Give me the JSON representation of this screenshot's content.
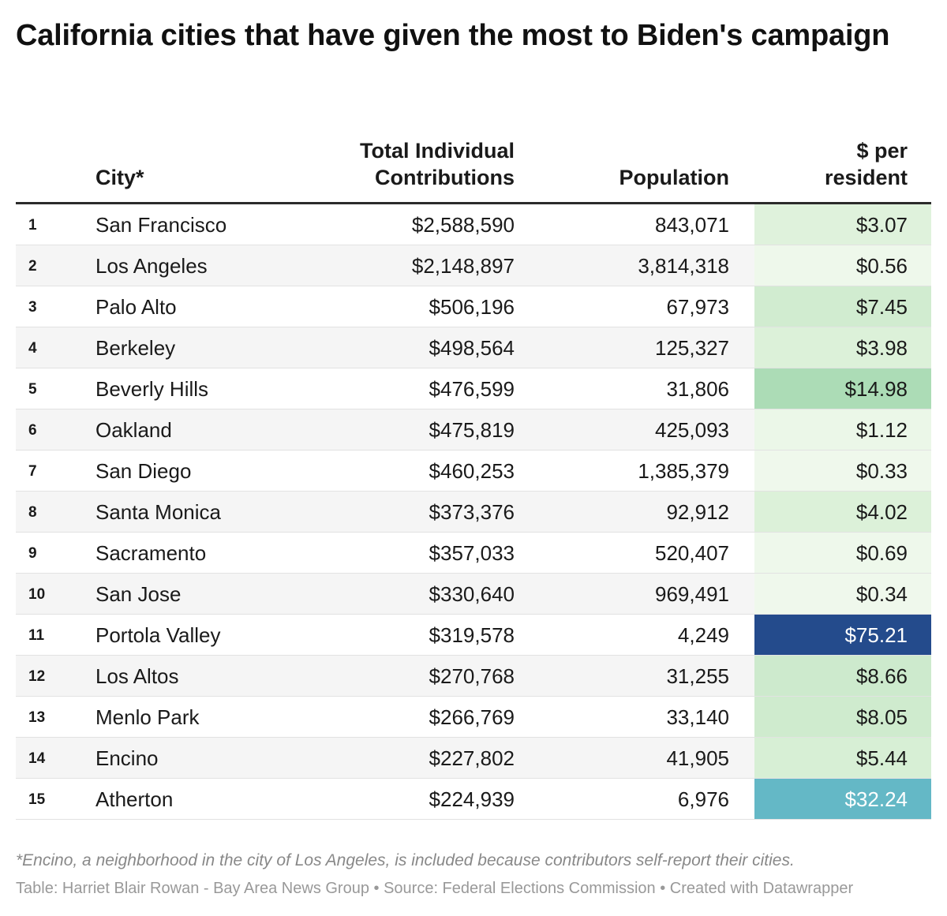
{
  "title": "California cities that have given the most to Biden's campaign",
  "chart_data": {
    "type": "table",
    "title": "California cities that have given the most to Biden's campaign",
    "columns": [
      "",
      "City*",
      "Total Individual Contributions",
      "Population",
      "$ per resident"
    ],
    "rows": [
      {
        "rank": "1",
        "city": "San Francisco",
        "total": "$2,588,590",
        "population": "843,071",
        "per_resident": "$3.07",
        "per_value": 3.07,
        "color": "#dff2dc",
        "text_color": "#1a1a1a"
      },
      {
        "rank": "2",
        "city": "Los Angeles",
        "total": "$2,148,897",
        "population": "3,814,318",
        "per_resident": "$0.56",
        "per_value": 0.56,
        "color": "#eef8eb",
        "text_color": "#1a1a1a"
      },
      {
        "rank": "3",
        "city": "Palo Alto",
        "total": "$506,196",
        "population": "67,973",
        "per_resident": "$7.45",
        "per_value": 7.45,
        "color": "#d1ecd0",
        "text_color": "#1a1a1a"
      },
      {
        "rank": "4",
        "city": "Berkeley",
        "total": "$498,564",
        "population": "125,327",
        "per_resident": "$3.98",
        "per_value": 3.98,
        "color": "#dcf1d9",
        "text_color": "#1a1a1a"
      },
      {
        "rank": "5",
        "city": "Beverly Hills",
        "total": "$476,599",
        "population": "31,806",
        "per_resident": "$14.98",
        "per_value": 14.98,
        "color": "#acdcb6",
        "text_color": "#1a1a1a"
      },
      {
        "rank": "6",
        "city": "Oakland",
        "total": "$475,819",
        "population": "425,093",
        "per_resident": "$1.12",
        "per_value": 1.12,
        "color": "#ebf7e8",
        "text_color": "#1a1a1a"
      },
      {
        "rank": "7",
        "city": "San Diego",
        "total": "$460,253",
        "population": "1,385,379",
        "per_resident": "$0.33",
        "per_value": 0.33,
        "color": "#eff8ec",
        "text_color": "#1a1a1a"
      },
      {
        "rank": "8",
        "city": "Santa Monica",
        "total": "$373,376",
        "population": "92,912",
        "per_resident": "$4.02",
        "per_value": 4.02,
        "color": "#dcf1d9",
        "text_color": "#1a1a1a"
      },
      {
        "rank": "9",
        "city": "Sacramento",
        "total": "$357,033",
        "population": "520,407",
        "per_resident": "$0.69",
        "per_value": 0.69,
        "color": "#eef8eb",
        "text_color": "#1a1a1a"
      },
      {
        "rank": "10",
        "city": "San Jose",
        "total": "$330,640",
        "population": "969,491",
        "per_resident": "$0.34",
        "per_value": 0.34,
        "color": "#eff8ec",
        "text_color": "#1a1a1a"
      },
      {
        "rank": "11",
        "city": "Portola Valley",
        "total": "$319,578",
        "population": "4,249",
        "per_resident": "$75.21",
        "per_value": 75.21,
        "color": "#244b8c",
        "text_color": "#ffffff"
      },
      {
        "rank": "12",
        "city": "Los Altos",
        "total": "$270,768",
        "population": "31,255",
        "per_resident": "$8.66",
        "per_value": 8.66,
        "color": "#cdeacd",
        "text_color": "#1a1a1a"
      },
      {
        "rank": "13",
        "city": "Menlo Park",
        "total": "$266,769",
        "population": "33,140",
        "per_resident": "$8.05",
        "per_value": 8.05,
        "color": "#cfebce",
        "text_color": "#1a1a1a"
      },
      {
        "rank": "14",
        "city": "Encino",
        "total": "$227,802",
        "population": "41,905",
        "per_resident": "$5.44",
        "per_value": 5.44,
        "color": "#d7efd5",
        "text_color": "#1a1a1a"
      },
      {
        "rank": "15",
        "city": "Atherton",
        "total": "$224,939",
        "population": "6,976",
        "per_resident": "$32.24",
        "per_value": 32.24,
        "color": "#64b8c6",
        "text_color": "#ffffff"
      }
    ]
  },
  "header": {
    "city": "City*",
    "total_line1": "Total Individual",
    "total_line2": "Contributions",
    "population": "Population",
    "per_line1": "$ per",
    "per_line2": "resident"
  },
  "footnote": "*Encino, a neighborhood in the city of Los Angeles, is included because contributors self-report their cities.",
  "source": "Table: Harriet Blair Rowan - Bay Area News Group • Source: Federal Elections Commission • Created with Datawrapper"
}
